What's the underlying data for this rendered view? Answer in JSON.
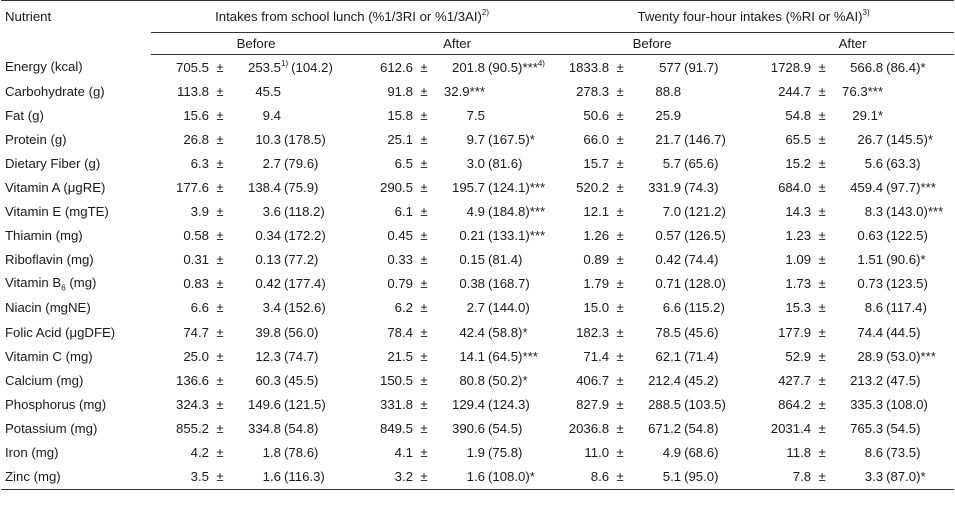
{
  "header": {
    "nutrient_label": "Nutrient",
    "group1_label": "Intakes from school lunch (%1/3RI or %1/3AI)",
    "group1_note": "2)",
    "group2_label": "Twenty four-hour intakes (%RI or %AI)",
    "group2_note": "3)",
    "before_label": "Before",
    "after_label": "After",
    "pm_symbol": "±"
  },
  "rows": [
    {
      "name": "Energy (kcal)",
      "lb_mean": "705.5",
      "lb_sd": "253.5",
      "lb_sd_note": "1)",
      "lb_pct": "(104.2)",
      "la_mean": "612.6",
      "la_sd": "201.8",
      "la_pct": "(90.5)***",
      "la_note": "4)",
      "tb_mean": "1833.8",
      "tb_sd": "577",
      "tb_pct": "(91.7)",
      "ta_mean": "1728.9",
      "ta_sd": "566.8",
      "ta_pct": "(86.4)*"
    },
    {
      "name": "Carbohydrate (g)",
      "lb_mean": "113.8",
      "lb_sd": "45.5",
      "lb_pct": "",
      "la_mean": "91.8",
      "la_sd": "32.9***",
      "la_pct": "",
      "tb_mean": "278.3",
      "tb_sd": "88.8",
      "tb_pct": "",
      "ta_mean": "244.7",
      "ta_sd": "76.3***",
      "ta_pct": ""
    },
    {
      "name": "Fat (g)",
      "lb_mean": "15.6",
      "lb_sd": "9.4",
      "lb_pct": "",
      "la_mean": "15.8",
      "la_sd": "7.5",
      "la_pct": "",
      "tb_mean": "50.6",
      "tb_sd": "25.9",
      "tb_pct": "",
      "ta_mean": "54.8",
      "ta_sd": "29.1*",
      "ta_pct": ""
    },
    {
      "name": "Protein (g)",
      "lb_mean": "26.8",
      "lb_sd": "10.3",
      "lb_pct": "(178.5)",
      "la_mean": "25.1",
      "la_sd": "9.7",
      "la_pct": "(167.5)*",
      "tb_mean": "66.0",
      "tb_sd": "21.7",
      "tb_pct": "(146.7)",
      "ta_mean": "65.5",
      "ta_sd": "26.7",
      "ta_pct": "(145.5)*"
    },
    {
      "name": "Dietary Fiber (g)",
      "lb_mean": "6.3",
      "lb_sd": "2.7",
      "lb_pct": "(79.6)",
      "la_mean": "6.5",
      "la_sd": "3.0",
      "la_pct": "(81.6)",
      "tb_mean": "15.7",
      "tb_sd": "5.7",
      "tb_pct": "(65.6)",
      "ta_mean": "15.2",
      "ta_sd": "5.6",
      "ta_pct": "(63.3)"
    },
    {
      "name": "Vitamin A (μgRE)",
      "lb_mean": "177.6",
      "lb_sd": "138.4",
      "lb_pct": "(75.9)",
      "la_mean": "290.5",
      "la_sd": "195.7",
      "la_pct": "(124.1)***",
      "tb_mean": "520.2",
      "tb_sd": "331.9",
      "tb_pct": "(74.3)",
      "ta_mean": "684.0",
      "ta_sd": "459.4",
      "ta_pct": "(97.7)***"
    },
    {
      "name": "Vitamin E (mgTE)",
      "lb_mean": "3.9",
      "lb_sd": "3.6",
      "lb_pct": "(118.2)",
      "la_mean": "6.1",
      "la_sd": "4.9",
      "la_pct": "(184.8)***",
      "tb_mean": "12.1",
      "tb_sd": "7.0",
      "tb_pct": "(121.2)",
      "ta_mean": "14.3",
      "ta_sd": "8.3",
      "ta_pct": "(143.0)***"
    },
    {
      "name": "Thiamin (mg)",
      "lb_mean": "0.58",
      "lb_sd": "0.34",
      "lb_pct": "(172.2)",
      "la_mean": "0.45",
      "la_sd": "0.21",
      "la_pct": "(133.1)***",
      "tb_mean": "1.26",
      "tb_sd": "0.57",
      "tb_pct": "(126.5)",
      "ta_mean": "1.23",
      "ta_sd": "0.63",
      "ta_pct": "(122.5)"
    },
    {
      "name": "Riboflavin (mg)",
      "lb_mean": "0.31",
      "lb_sd": "0.13",
      "lb_pct": "(77.2)",
      "la_mean": "0.33",
      "la_sd": "0.15",
      "la_pct": "(81.4)",
      "tb_mean": "0.89",
      "tb_sd": "0.42",
      "tb_pct": "(74.4)",
      "ta_mean": "1.09",
      "ta_sd": "1.51",
      "ta_pct": "(90.6)*"
    },
    {
      "name": "Vitamin B",
      "name_sub": "6",
      "name_suffix": " (mg)",
      "lb_mean": "0.83",
      "lb_sd": "0.42",
      "lb_pct": "(177.4)",
      "la_mean": "0.79",
      "la_sd": "0.38",
      "la_pct": "(168.7)",
      "tb_mean": "1.79",
      "tb_sd": "0.71",
      "tb_pct": "(128.0)",
      "ta_mean": "1.73",
      "ta_sd": "0.73",
      "ta_pct": "(123.5)"
    },
    {
      "name": "Niacin (mgNE)",
      "lb_mean": "6.6",
      "lb_sd": "3.4",
      "lb_pct": "(152.6)",
      "la_mean": "6.2",
      "la_sd": "2.7",
      "la_pct": "(144.0)",
      "tb_mean": "15.0",
      "tb_sd": "6.6",
      "tb_pct": "(115.2)",
      "ta_mean": "15.3",
      "ta_sd": "8.6",
      "ta_pct": "(117.4)"
    },
    {
      "name": "Folic Acid (μgDFE)",
      "lb_mean": "74.7",
      "lb_sd": "39.8",
      "lb_pct": "(56.0)",
      "la_mean": "78.4",
      "la_sd": "42.4",
      "la_pct": "(58.8)*",
      "tb_mean": "182.3",
      "tb_sd": "78.5",
      "tb_pct": "(45.6)",
      "ta_mean": "177.9",
      "ta_sd": "74.4",
      "ta_pct": "(44.5)"
    },
    {
      "name": "Vitamin C (mg)",
      "lb_mean": "25.0",
      "lb_sd": "12.3",
      "lb_pct": "(74.7)",
      "la_mean": "21.5",
      "la_sd": "14.1",
      "la_pct": "(64.5)***",
      "tb_mean": "71.4",
      "tb_sd": "62.1",
      "tb_pct": "(71.4)",
      "ta_mean": "52.9",
      "ta_sd": "28.9",
      "ta_pct": "(53.0)***"
    },
    {
      "name": "Calcium (mg)",
      "lb_mean": "136.6",
      "lb_sd": "60.3",
      "lb_pct": "(45.5)",
      "la_mean": "150.5",
      "la_sd": "80.8",
      "la_pct": "(50.2)*",
      "tb_mean": "406.7",
      "tb_sd": "212.4",
      "tb_pct": "(45.2)",
      "ta_mean": "427.7",
      "ta_sd": "213.2",
      "ta_pct": "(47.5)"
    },
    {
      "name": "Phosphorus (mg)",
      "lb_mean": "324.3",
      "lb_sd": "149.6",
      "lb_pct": "(121.5)",
      "la_mean": "331.8",
      "la_sd": "129.4",
      "la_pct": "(124.3)",
      "tb_mean": "827.9",
      "tb_sd": "288.5",
      "tb_pct": "(103.5)",
      "ta_mean": "864.2",
      "ta_sd": "335.3",
      "ta_pct": "(108.0)"
    },
    {
      "name": "Potassium (mg)",
      "lb_mean": "855.2",
      "lb_sd": "334.8",
      "lb_pct": "(54.8)",
      "la_mean": "849.5",
      "la_sd": "390.6",
      "la_pct": "(54.5)",
      "tb_mean": "2036.8",
      "tb_sd": "671.2",
      "tb_pct": "(54.8)",
      "ta_mean": "2031.4",
      "ta_sd": "765.3",
      "ta_pct": "(54.5)"
    },
    {
      "name": "Iron (mg)",
      "lb_mean": "4.2",
      "lb_sd": "1.8",
      "lb_pct": "(78.6)",
      "la_mean": "4.1",
      "la_sd": "1.9",
      "la_pct": "(75.8)",
      "tb_mean": "11.0",
      "tb_sd": "4.9",
      "tb_pct": "(68.6)",
      "ta_mean": "11.8",
      "ta_sd": "8.6",
      "ta_pct": "(73.5)"
    },
    {
      "name": "Zinc (mg)",
      "lb_mean": "3.5",
      "lb_sd": "1.6",
      "lb_pct": "(116.3)",
      "la_mean": "3.2",
      "la_sd": "1.6",
      "la_pct": "(108.0)*",
      "tb_mean": "8.6",
      "tb_sd": "5.1",
      "tb_pct": "(95.0)",
      "ta_mean": "7.8",
      "ta_sd": "3.3",
      "ta_pct": "(87.0)*"
    }
  ]
}
